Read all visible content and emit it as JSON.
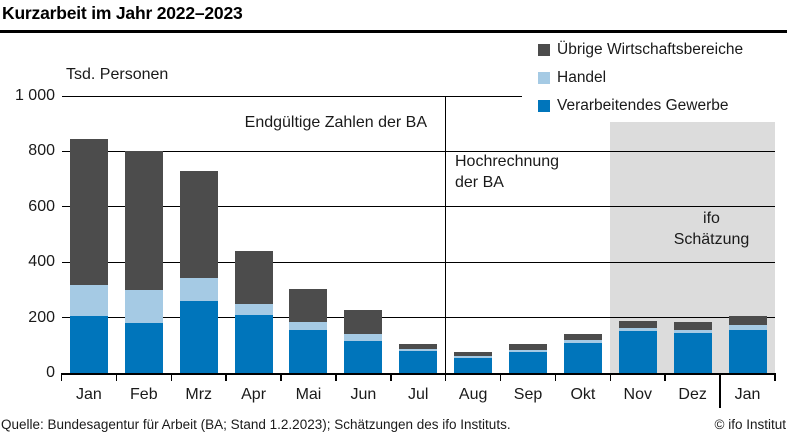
{
  "title": "Kurzarbeit im Jahr 2022–2023",
  "legend": [
    {
      "label": "Übrige Wirtschaftsbereiche",
      "color": "#4c4c4c"
    },
    {
      "label": "Handel",
      "color": "#a5cae4"
    },
    {
      "label": "Verarbeitendes Gewerbe",
      "color": "#0075bb"
    }
  ],
  "annotations": {
    "final_figures": "Endgültige Zahlen der BA",
    "projection_line1": "Hochrechnung",
    "projection_line2": "der BA",
    "estimate_line1": "ifo",
    "estimate_line2": "Schätzung"
  },
  "footer": {
    "source": "Quelle: Bundesagentur für Arbeit (BA; Stand 1.2.2023); Schätzungen des ifo Instituts.",
    "copyright": "© ifo Institut"
  },
  "chart_data": {
    "type": "bar",
    "stacked": true,
    "title": "Kurzarbeit im Jahr 2022–2023",
    "ylabel": "Tsd. Personen",
    "ylim": [
      0,
      1000
    ],
    "yticks": [
      0,
      200,
      400,
      600,
      800,
      1000
    ],
    "ytick_labels": [
      "0",
      "200",
      "400",
      "600",
      "800",
      "1 000"
    ],
    "grid": true,
    "legend_position": "top-right",
    "categories": [
      "Jan",
      "Feb",
      "Mrz",
      "Apr",
      "Mai",
      "Jun",
      "Jul",
      "Aug",
      "Sep",
      "Okt",
      "Nov",
      "Dez",
      "Jan"
    ],
    "series": [
      {
        "name": "Verarbeitendes Gewerbe",
        "color": "#0075bb",
        "values": [
          205,
          180,
          260,
          210,
          155,
          115,
          80,
          55,
          77,
          110,
          154,
          147,
          155
        ]
      },
      {
        "name": "Handel",
        "color": "#a5cae4",
        "values": [
          115,
          120,
          85,
          40,
          30,
          25,
          7,
          6,
          8,
          10,
          9,
          10,
          20
        ]
      },
      {
        "name": "Übrige Wirtschaftsbereiche",
        "color": "#4c4c4c",
        "values": [
          525,
          500,
          385,
          190,
          120,
          90,
          18,
          17,
          19,
          22,
          25,
          28,
          30
        ]
      }
    ],
    "sections": {
      "divider_after_category": 7,
      "shaded_from_category": 10,
      "year_break_before_category": 12
    }
  }
}
